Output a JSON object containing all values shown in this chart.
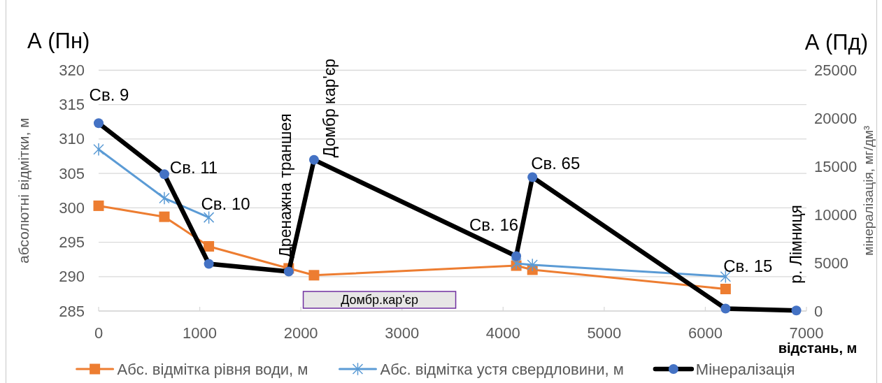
{
  "chart_data": {
    "type": "line",
    "annotations": [
      "А (Пн)",
      "А (Пд)",
      "Св. 9",
      "Св. 11",
      "Св. 10",
      "Дренажна траншея",
      "Домбр кар'єр",
      "Св. 16",
      "Св. 65",
      "Св. 15",
      "р. Лімниця",
      "Домбр.кар'єр"
    ],
    "xlabel": "відстань, м",
    "ylabel": "абсолютні відмітки, м",
    "y2label": "мінералізація, мг/дм³",
    "xlim": [
      0,
      7000
    ],
    "xticks": [
      0,
      1000,
      2000,
      3000,
      4000,
      5000,
      6000,
      7000
    ],
    "ylim": [
      285,
      320
    ],
    "yticks": [
      285,
      290,
      295,
      300,
      305,
      310,
      315,
      320
    ],
    "y2lim": [
      0,
      25000
    ],
    "y2ticks": [
      0,
      5000,
      10000,
      15000,
      20000,
      25000
    ],
    "grid": "y",
    "legend": "bottom",
    "series": [
      {
        "name": "Абс. відмітка рівня води, м",
        "color": "#ed7d31",
        "marker": "square",
        "x": [
          0,
          650,
          1090,
          1880,
          2130,
          4130,
          4290,
          6200
        ],
        "values": [
          300.3,
          298.7,
          294.4,
          291.2,
          290.2,
          291.6,
          291.0,
          288.2
        ]
      },
      {
        "name": "Абс. відмітка устя свердловини, м",
        "color": "#5b9bd5",
        "marker": "cross",
        "x": [
          0,
          650,
          1090
        ],
        "values": [
          308.5,
          301.4,
          298.6
        ]
      },
      {
        "color": "#5b9bd5",
        "marker": "cross",
        "x": [
          4130,
          4290,
          6200
        ],
        "values": [
          291.9,
          291.7,
          290.0
        ]
      },
      {
        "name": "Мінералізація",
        "color": "#000000",
        "colors": [
          "#4472c4",
          "#4472c4",
          "#4472c4",
          "#4472c4",
          "#4472c4",
          "#4472c4",
          "#4472c4",
          "#4472c4",
          "#4472c4"
        ],
        "marker": "circle",
        "axis": "y2",
        "x": [
          0,
          650,
          1090,
          1880,
          2130,
          4130,
          4290,
          6200,
          6900
        ],
        "values": [
          19500,
          14200,
          4900,
          4100,
          15700,
          5700,
          13900,
          250,
          50
        ]
      }
    ]
  }
}
